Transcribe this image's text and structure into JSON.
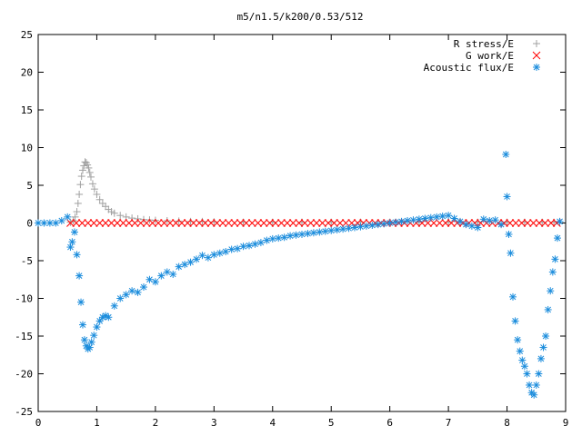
{
  "chart_data": {
    "type": "scatter",
    "title": "m5/n1.5/k200/0.53/512",
    "xlabel": "",
    "ylabel": "",
    "xlim": [
      0,
      9
    ],
    "ylim": [
      -25,
      25
    ],
    "xticks": [
      0,
      1,
      2,
      3,
      4,
      5,
      6,
      7,
      8,
      9
    ],
    "yticks": [
      -25,
      -20,
      -15,
      -10,
      -5,
      0,
      5,
      10,
      15,
      20,
      25
    ],
    "grid": false,
    "legend": "top-right",
    "series": [
      {
        "name": "R stress/E",
        "marker": "plus",
        "color": "#a0a0a0",
        "x": [
          0.55,
          0.6,
          0.63,
          0.66,
          0.68,
          0.7,
          0.72,
          0.74,
          0.76,
          0.78,
          0.8,
          0.82,
          0.84,
          0.86,
          0.88,
          0.9,
          0.93,
          0.96,
          1.0,
          1.05,
          1.1,
          1.15,
          1.2,
          1.25,
          1.3,
          1.4,
          1.5,
          1.6,
          1.7,
          1.8,
          1.9,
          2.0,
          2.2,
          2.4,
          2.6,
          2.8,
          3.0,
          3.5,
          4.0,
          4.5,
          5.0,
          5.5,
          6.0,
          6.5,
          7.0,
          7.5,
          8.0,
          8.3,
          8.6,
          8.8
        ],
        "y": [
          0.1,
          0.3,
          0.8,
          1.5,
          2.6,
          3.8,
          5.1,
          6.2,
          7.0,
          7.6,
          8.1,
          8.0,
          7.7,
          7.3,
          6.7,
          6.1,
          5.2,
          4.5,
          3.8,
          3.1,
          2.6,
          2.2,
          1.8,
          1.5,
          1.3,
          1.0,
          0.8,
          0.65,
          0.55,
          0.45,
          0.4,
          0.35,
          0.3,
          0.25,
          0.2,
          0.2,
          0.15,
          0.1,
          0.1,
          0.1,
          0.1,
          0.1,
          0.1,
          0.1,
          0.1,
          0.1,
          0.1,
          0.1,
          0.1,
          0.1
        ]
      },
      {
        "name": "G work/E",
        "marker": "cross",
        "color": "#ff0000",
        "x": [
          0.55,
          0.65,
          0.75,
          0.85,
          0.95,
          1.05,
          1.15,
          1.25,
          1.35,
          1.45,
          1.55,
          1.65,
          1.75,
          1.85,
          1.95,
          2.05,
          2.15,
          2.25,
          2.35,
          2.45,
          2.55,
          2.65,
          2.75,
          2.85,
          2.95,
          3.05,
          3.15,
          3.25,
          3.35,
          3.45,
          3.55,
          3.65,
          3.75,
          3.85,
          3.95,
          4.05,
          4.15,
          4.25,
          4.35,
          4.45,
          4.55,
          4.65,
          4.75,
          4.85,
          4.95,
          5.05,
          5.15,
          5.25,
          5.35,
          5.45,
          5.55,
          5.65,
          5.75,
          5.85,
          5.95,
          6.05,
          6.15,
          6.25,
          6.35,
          6.45,
          6.55,
          6.65,
          6.75,
          6.85,
          6.95,
          7.05,
          7.15,
          7.25,
          7.35,
          7.45,
          7.55,
          7.65,
          7.75,
          7.85,
          7.95,
          8.05,
          8.15,
          8.25,
          8.35,
          8.45,
          8.55,
          8.65,
          8.75,
          8.85
        ],
        "y": [
          0,
          0,
          0,
          0,
          0,
          0,
          0,
          0,
          0,
          0,
          0,
          0,
          0,
          0,
          0,
          0,
          0,
          0,
          0,
          0,
          0,
          0,
          0,
          0,
          0,
          0,
          0,
          0,
          0,
          0,
          0,
          0,
          0,
          0,
          0,
          0,
          0,
          0,
          0,
          0,
          0,
          0,
          0,
          0,
          0,
          0,
          0,
          0,
          0,
          0,
          0,
          0,
          0,
          0,
          0,
          0,
          0,
          0,
          0,
          0,
          0,
          0,
          0,
          0,
          0,
          0,
          0,
          0,
          0,
          0,
          0,
          0,
          0,
          0,
          0,
          0,
          0,
          0,
          0,
          0,
          0,
          0,
          0,
          0
        ]
      },
      {
        "name": "Acoustic flux/E",
        "marker": "star",
        "color": "#1a8cdc",
        "x": [
          0.0,
          0.1,
          0.2,
          0.3,
          0.4,
          0.5,
          0.55,
          0.58,
          0.62,
          0.66,
          0.7,
          0.73,
          0.76,
          0.79,
          0.82,
          0.85,
          0.88,
          0.91,
          0.95,
          1.0,
          1.05,
          1.1,
          1.15,
          1.2,
          1.3,
          1.4,
          1.5,
          1.6,
          1.7,
          1.8,
          1.9,
          2.0,
          2.1,
          2.2,
          2.3,
          2.4,
          2.5,
          2.6,
          2.7,
          2.8,
          2.9,
          3.0,
          3.1,
          3.2,
          3.3,
          3.4,
          3.5,
          3.6,
          3.7,
          3.8,
          3.9,
          4.0,
          4.1,
          4.2,
          4.3,
          4.4,
          4.5,
          4.6,
          4.7,
          4.8,
          4.9,
          5.0,
          5.1,
          5.2,
          5.3,
          5.4,
          5.5,
          5.6,
          5.7,
          5.8,
          5.9,
          6.0,
          6.1,
          6.2,
          6.3,
          6.4,
          6.5,
          6.6,
          6.7,
          6.8,
          6.9,
          7.0,
          7.1,
          7.2,
          7.3,
          7.4,
          7.5,
          7.6,
          7.7,
          7.8,
          7.9,
          7.98,
          8.0,
          8.03,
          8.06,
          8.1,
          8.14,
          8.18,
          8.22,
          8.26,
          8.3,
          8.34,
          8.38,
          8.42,
          8.46,
          8.5,
          8.54,
          8.58,
          8.62,
          8.66,
          8.7,
          8.74,
          8.78,
          8.82,
          8.86,
          8.9
        ],
        "y": [
          0,
          0,
          0,
          0,
          0.3,
          0.8,
          -3.2,
          -2.5,
          -1.2,
          -4.2,
          -7.0,
          -10.5,
          -13.5,
          -15.5,
          -16.3,
          -16.7,
          -16.5,
          -15.8,
          -14.9,
          -13.8,
          -13.0,
          -12.5,
          -12.3,
          -12.5,
          -11.0,
          -10.0,
          -9.5,
          -9.0,
          -9.2,
          -8.5,
          -7.5,
          -7.8,
          -7.0,
          -6.5,
          -6.8,
          -5.8,
          -5.5,
          -5.2,
          -4.8,
          -4.3,
          -4.6,
          -4.2,
          -4.0,
          -3.8,
          -3.5,
          -3.4,
          -3.1,
          -3.0,
          -2.8,
          -2.6,
          -2.3,
          -2.1,
          -2.0,
          -1.9,
          -1.7,
          -1.6,
          -1.5,
          -1.4,
          -1.3,
          -1.2,
          -1.1,
          -1.0,
          -0.9,
          -0.8,
          -0.7,
          -0.6,
          -0.5,
          -0.4,
          -0.3,
          -0.2,
          -0.1,
          0.0,
          0.1,
          0.2,
          0.3,
          0.4,
          0.5,
          0.6,
          0.7,
          0.8,
          0.9,
          1.0,
          0.6,
          0.2,
          -0.2,
          -0.4,
          -0.6,
          0.5,
          0.3,
          0.4,
          -0.2,
          9.1,
          3.5,
          -1.5,
          -4.0,
          -9.8,
          -13.0,
          -15.5,
          -17.0,
          -18.2,
          -19.0,
          -20.0,
          -21.5,
          -22.5,
          -22.8,
          -21.5,
          -20.0,
          -18.0,
          -16.5,
          -15.0,
          -11.5,
          -9.0,
          -6.5,
          -4.8,
          -2.0,
          0.2
        ]
      }
    ]
  }
}
